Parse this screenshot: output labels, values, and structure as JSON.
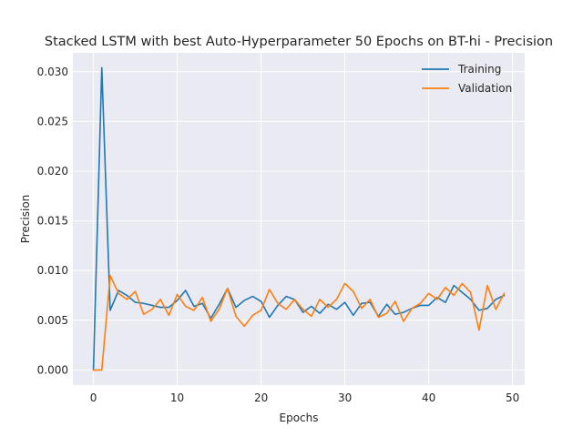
{
  "chart_data": {
    "type": "line",
    "title": "Stacked LSTM with best Auto-Hyperparameter 50 Epochs on BT-hi - Precision",
    "xlabel": "Epochs",
    "ylabel": "Precision",
    "xlim": [
      -2.45,
      51.45
    ],
    "ylim": [
      -0.00152,
      0.0319
    ],
    "xticks": [
      0,
      10,
      20,
      30,
      40,
      50
    ],
    "xtick_labels": [
      "0",
      "10",
      "20",
      "30",
      "40",
      "50"
    ],
    "yticks": [
      0.0,
      0.005,
      0.01,
      0.015,
      0.02,
      0.025,
      0.03
    ],
    "ytick_labels": [
      "0.000",
      "0.005",
      "0.010",
      "0.015",
      "0.020",
      "0.025",
      "0.030"
    ],
    "grid": true,
    "legend_position": "top-right",
    "x": [
      0,
      1,
      2,
      3,
      4,
      5,
      6,
      7,
      8,
      9,
      10,
      11,
      12,
      13,
      14,
      15,
      16,
      17,
      18,
      19,
      20,
      21,
      22,
      23,
      24,
      25,
      26,
      27,
      28,
      29,
      30,
      31,
      32,
      33,
      34,
      35,
      36,
      37,
      38,
      39,
      40,
      41,
      42,
      43,
      44,
      45,
      46,
      47,
      48,
      49
    ],
    "series": [
      {
        "name": "Training",
        "color": "#1f77b4",
        "values": [
          0.0,
          0.0304,
          0.006,
          0.008,
          0.0075,
          0.0068,
          0.0067,
          0.0065,
          0.0063,
          0.0063,
          0.007,
          0.008,
          0.0064,
          0.0067,
          0.0052,
          0.0066,
          0.0082,
          0.0063,
          0.007,
          0.0074,
          0.0069,
          0.0053,
          0.0065,
          0.0074,
          0.0071,
          0.0058,
          0.0064,
          0.0057,
          0.0066,
          0.0061,
          0.0068,
          0.0055,
          0.0067,
          0.0068,
          0.0054,
          0.0066,
          0.0056,
          0.0058,
          0.0062,
          0.0065,
          0.0065,
          0.0073,
          0.0068,
          0.0085,
          0.0078,
          0.0071,
          0.006,
          0.0062,
          0.0071,
          0.0075
        ]
      },
      {
        "name": "Validation",
        "color": "#ff7f0e",
        "values": [
          0.0,
          0.0,
          0.0095,
          0.0077,
          0.0071,
          0.0079,
          0.0056,
          0.0061,
          0.0071,
          0.0055,
          0.0076,
          0.0064,
          0.006,
          0.0073,
          0.0049,
          0.0061,
          0.0082,
          0.0054,
          0.0044,
          0.0055,
          0.006,
          0.0081,
          0.0067,
          0.0061,
          0.0071,
          0.0061,
          0.0054,
          0.0071,
          0.0063,
          0.0071,
          0.0087,
          0.0079,
          0.0062,
          0.0071,
          0.0053,
          0.0057,
          0.0069,
          0.0049,
          0.0062,
          0.0067,
          0.0077,
          0.0071,
          0.0083,
          0.0075,
          0.0087,
          0.0078,
          0.004,
          0.0085,
          0.0061,
          0.0077
        ]
      }
    ]
  }
}
